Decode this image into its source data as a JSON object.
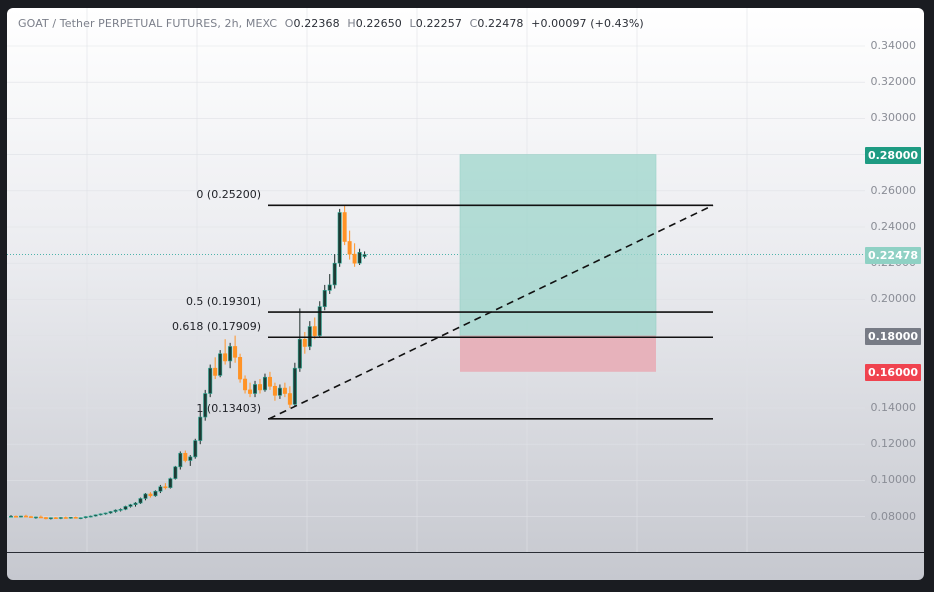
{
  "header": {
    "symbol": "GOAT / Tether PERPETUAL FUTURES, 2h, MEXC",
    "open_key": "O",
    "open": "0.22368",
    "high_key": "H",
    "high": "0.22650",
    "low_key": "L",
    "low": "0.22257",
    "close_key": "C",
    "close": "0.22478",
    "change": "+0.00097 (+0.43%)"
  },
  "price_axis": {
    "ticks": [
      "0.34000",
      "0.32000",
      "0.30000",
      "0.28000",
      "0.26000",
      "0.24000",
      "0.22000",
      "0.20000",
      "0.18000",
      "0.16000",
      "0.14000",
      "0.12000",
      "0.10000",
      "0.08000"
    ],
    "badges": [
      {
        "label": "0.28000",
        "price": 0.28,
        "color": "#1e9b82"
      },
      {
        "label": "0.22478",
        "price": 0.22478,
        "color": "#8fd1c4"
      },
      {
        "label": "0.18000",
        "price": 0.18,
        "color": "#777b85"
      },
      {
        "label": "0.16000",
        "price": 0.16,
        "color": "#f0434f"
      }
    ]
  },
  "fib": {
    "levels": [
      {
        "label": "0 (0.25200)",
        "price": 0.252
      },
      {
        "label": "0.5 (0.19301)",
        "price": 0.19301
      },
      {
        "label": "0.618 (0.17909)",
        "price": 0.17909
      },
      {
        "label": "1 (0.13403)",
        "price": 0.13403
      }
    ]
  },
  "position": {
    "entry": 0.18,
    "target": 0.28,
    "stop": 0.16,
    "profit_color": "#9ed6cc",
    "loss_color": "#e8a6b0"
  },
  "current_price": 0.22478,
  "colors": {
    "up": "#26a69a",
    "down": "#ff9326",
    "up_body": "#21362f"
  }
}
